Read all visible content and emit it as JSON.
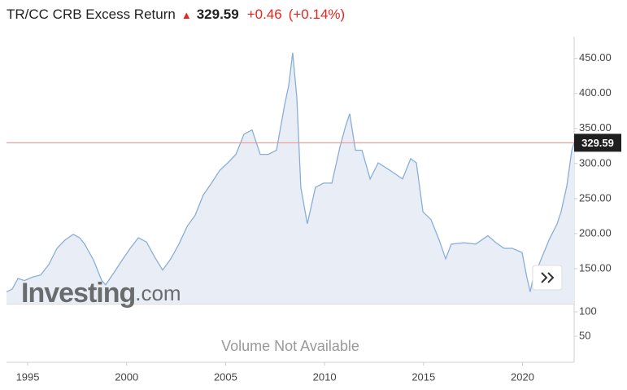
{
  "chart_data": {
    "type": "area",
    "title": "TR/CC CRB Excess Return",
    "price": 329.59,
    "change": "+0.46",
    "change_pct": "(+0.14%)",
    "watermark": [
      "Investing",
      ".com"
    ],
    "volume_note": "Volume Not Available",
    "color": "#89aed6",
    "fill_color": "#e9eef6",
    "price_line_color": "#f08a8a",
    "x": [
      1993.93,
      1994.22,
      1994.51,
      1994.84,
      1995.25,
      1995.66,
      1996.07,
      1996.48,
      1996.89,
      1997.3,
      1997.63,
      1997.88,
      1998.33,
      1998.74,
      1998.94,
      1999.35,
      1999.77,
      2000.18,
      2000.59,
      2001.0,
      2001.41,
      2001.82,
      2002.23,
      2002.64,
      2003.05,
      2003.46,
      2003.87,
      2004.29,
      2004.7,
      2005.11,
      2005.52,
      2005.93,
      2006.34,
      2006.75,
      2007.16,
      2007.57,
      2007.98,
      2008.19,
      2008.39,
      2008.6,
      2008.8,
      2009.13,
      2009.54,
      2009.95,
      2010.37,
      2010.78,
      2011.06,
      2011.27,
      2011.56,
      2011.89,
      2012.3,
      2012.71,
      2013.32,
      2013.94,
      2014.35,
      2014.64,
      2014.97,
      2015.38,
      2015.79,
      2016.12,
      2016.4,
      2017.02,
      2017.64,
      2018.25,
      2018.66,
      2019.07,
      2019.49,
      2019.98,
      2020.22,
      2020.39,
      2020.51,
      2020.92,
      2021.34,
      2021.75,
      2021.95,
      2022.24,
      2022.49,
      2022.61
    ],
    "values": [
      117,
      121,
      136,
      133,
      138,
      141,
      156,
      179,
      191,
      199,
      194,
      185,
      162,
      133,
      127,
      144,
      162,
      179,
      194,
      188,
      167,
      148,
      164,
      185,
      210,
      226,
      255,
      272,
      290,
      301,
      313,
      342,
      348,
      313,
      313,
      319,
      383,
      412,
      458,
      394,
      266,
      214,
      266,
      272,
      272,
      324,
      353,
      371,
      319,
      319,
      278,
      301,
      290,
      278,
      307,
      301,
      231,
      220,
      191,
      164,
      185,
      187,
      185,
      197,
      187,
      179,
      179,
      173,
      138,
      117,
      133,
      162,
      191,
      214,
      231,
      268,
      319,
      329.59
    ],
    "xlim": [
      1993.93,
      2022.61
    ],
    "xticks": [
      1995,
      2000,
      2005,
      2010,
      2015,
      2020
    ],
    "ylim": [
      100,
      481
    ],
    "yticks": [
      {
        "value": 150,
        "label": "150.00"
      },
      {
        "value": 200,
        "label": "200.00"
      },
      {
        "value": 250,
        "label": "250.00"
      },
      {
        "value": 300,
        "label": "300.00"
      },
      {
        "value": 350,
        "label": "350.00"
      },
      {
        "value": 400,
        "label": "400.00"
      },
      {
        "value": 450,
        "label": "450.00"
      }
    ],
    "y2lim": [
      0,
      116.7
    ],
    "y2ticks": [
      50,
      100
    ]
  }
}
